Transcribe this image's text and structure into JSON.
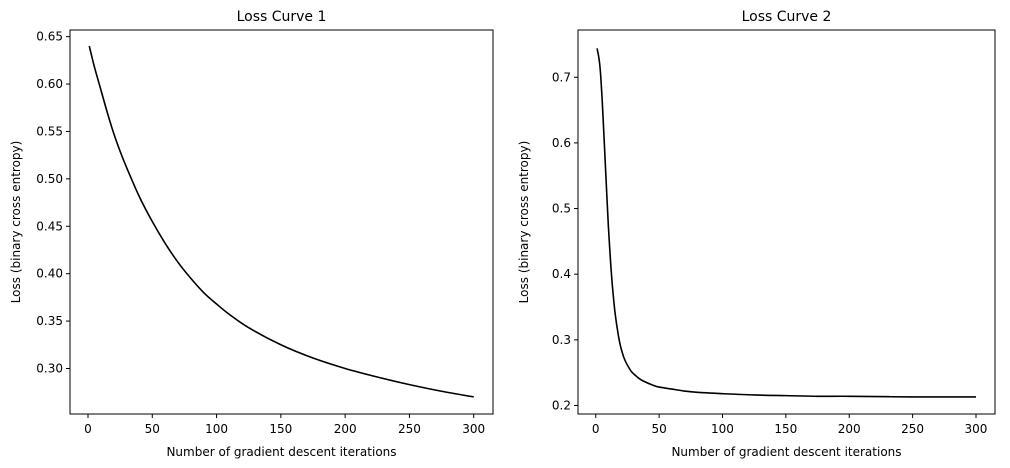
{
  "chart_data": [
    {
      "type": "line",
      "title": "Loss Curve 1",
      "xlabel": "Number of gradient descent iterations",
      "ylabel": "Loss (binary cross entropy)",
      "xlim": [
        -14,
        315
      ],
      "ylim": [
        0.252,
        0.657
      ],
      "xticks": [
        0,
        50,
        100,
        150,
        200,
        250,
        300
      ],
      "yticks": [
        0.3,
        0.35,
        0.4,
        0.45,
        0.5,
        0.55,
        0.6,
        0.65
      ],
      "ytick_labels": [
        "0.30",
        "0.35",
        "0.40",
        "0.45",
        "0.50",
        "0.55",
        "0.60",
        "0.65"
      ],
      "grid": false,
      "line_color": "#000000",
      "series": [
        {
          "x": [
            1,
            5,
            10,
            15,
            20,
            25,
            30,
            40,
            50,
            60,
            70,
            80,
            90,
            100,
            110,
            125,
            150,
            175,
            200,
            225,
            250,
            275,
            300
          ],
          "y": [
            0.64,
            0.618,
            0.594,
            0.57,
            0.548,
            0.529,
            0.512,
            0.481,
            0.455,
            0.432,
            0.412,
            0.395,
            0.38,
            0.368,
            0.357,
            0.343,
            0.325,
            0.311,
            0.3,
            0.291,
            0.283,
            0.276,
            0.27
          ]
        }
      ]
    },
    {
      "type": "line",
      "title": "Loss Curve 2",
      "xlabel": "Number of gradient descent iterations",
      "ylabel": "Loss (binary cross entropy)",
      "xlim": [
        -14,
        315
      ],
      "ylim": [
        0.187,
        0.772
      ],
      "xticks": [
        0,
        50,
        100,
        150,
        200,
        250,
        300
      ],
      "yticks": [
        0.2,
        0.3,
        0.4,
        0.5,
        0.6,
        0.7
      ],
      "ytick_labels": [
        "0.2",
        "0.3",
        "0.4",
        "0.5",
        "0.6",
        "0.7"
      ],
      "grid": false,
      "line_color": "#000000",
      "series": [
        {
          "x": [
            1,
            2,
            3,
            4,
            5,
            6,
            7,
            8,
            9,
            10,
            11,
            12,
            13,
            14,
            15,
            16,
            17,
            18,
            19,
            20,
            22,
            24,
            26,
            28,
            30,
            35,
            40,
            45,
            50,
            60,
            70,
            80,
            100,
            125,
            150,
            175,
            200,
            250,
            300
          ],
          "y": [
            0.744,
            0.735,
            0.722,
            0.7,
            0.668,
            0.63,
            0.59,
            0.55,
            0.51,
            0.472,
            0.44,
            0.41,
            0.385,
            0.364,
            0.345,
            0.33,
            0.317,
            0.305,
            0.295,
            0.287,
            0.274,
            0.265,
            0.258,
            0.252,
            0.248,
            0.24,
            0.235,
            0.231,
            0.228,
            0.225,
            0.222,
            0.22,
            0.218,
            0.216,
            0.215,
            0.214,
            0.214,
            0.213,
            0.213
          ]
        }
      ]
    }
  ]
}
